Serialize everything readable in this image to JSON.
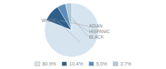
{
  "chart_data": {
    "type": "pie",
    "categories": [
      "WHITE",
      "ASIAN",
      "HISPANIC",
      "BLACK"
    ],
    "values": [
      80.9,
      10.4,
      5.0,
      3.7
    ],
    "value_labels": [
      "80.9%",
      "10.4%",
      "5.0%",
      "3.7%"
    ],
    "colors": [
      "#d6e4f0",
      "#2e5f8a",
      "#5b8db8",
      "#b0c8d8"
    ],
    "legend": "bottom"
  }
}
